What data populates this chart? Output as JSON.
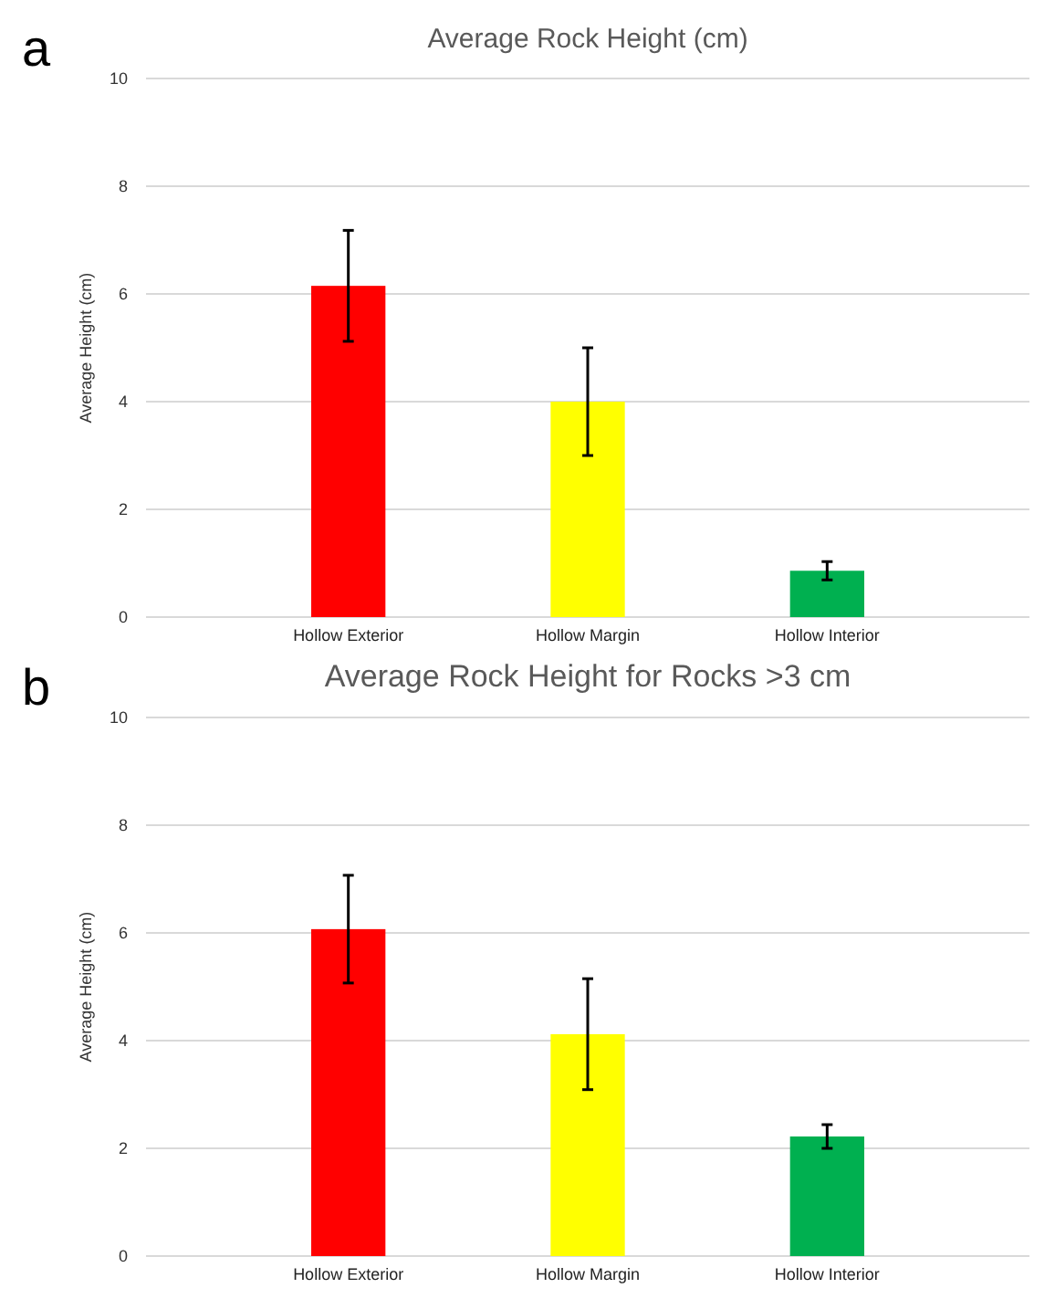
{
  "chart_data": [
    {
      "type": "bar",
      "title": "Average Rock Height (cm)",
      "ylabel": "Average Height (cm)",
      "annotations": [
        "a"
      ],
      "categories": [
        "Hollow Exterior",
        "Hollow Margin",
        "Hollow Interior"
      ],
      "values": [
        6.15,
        4.0,
        0.86
      ],
      "errors": [
        1.03,
        1.0,
        0.17
      ],
      "colors": [
        "#ff0000",
        "#ffff00",
        "#00b050"
      ],
      "ylim": [
        0,
        10
      ],
      "yticks": [
        0,
        2,
        4,
        6,
        8,
        10
      ],
      "grid": "y"
    },
    {
      "type": "bar",
      "title": "Average Rock Height for Rocks >3 cm",
      "ylabel": "Average Height (cm)",
      "annotations": [
        "b"
      ],
      "categories": [
        "Hollow Exterior",
        "Hollow Margin",
        "Hollow Interior"
      ],
      "values": [
        6.07,
        4.12,
        2.22
      ],
      "errors": [
        1.0,
        1.03,
        0.22
      ],
      "colors": [
        "#ff0000",
        "#ffff00",
        "#00b050"
      ],
      "ylim": [
        0,
        10
      ],
      "yticks": [
        0,
        2,
        4,
        6,
        8,
        10
      ],
      "grid": "y"
    }
  ]
}
